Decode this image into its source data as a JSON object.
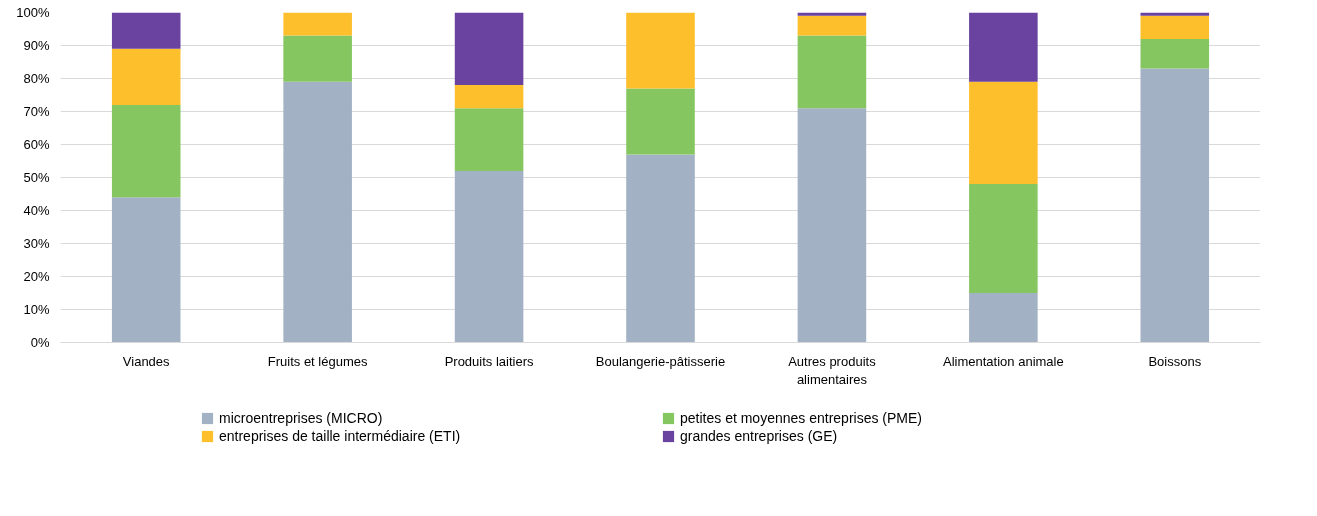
{
  "chart_data": {
    "type": "bar",
    "stacked": true,
    "categories": [
      "Viandes",
      "Fruits et légumes",
      "Produits laitiers",
      "Boulangerie-pâtisserie",
      "Autres produits alimentaires",
      "Alimentation animale",
      "Boissons"
    ],
    "series": [
      {
        "name": "microentreprises (MICRO)",
        "color": "#a2b1c3",
        "values": [
          44,
          79,
          52,
          57,
          71,
          15,
          83
        ]
      },
      {
        "name": "petites et moyennes entreprises (PME)",
        "color": "#86c661",
        "values": [
          28,
          14,
          19,
          20,
          22,
          33,
          9
        ]
      },
      {
        "name": "entreprises de taille intermédiaire (ETI)",
        "color": "#fdbf2c",
        "values": [
          17,
          7,
          7,
          23,
          6,
          31,
          7
        ]
      },
      {
        "name": "grandes entreprises (GE)",
        "color": "#6a42a0",
        "values": [
          11,
          0,
          22,
          0,
          1,
          21,
          1
        ]
      }
    ],
    "ylim": [
      0,
      100
    ],
    "yticks": [
      {
        "value": 0,
        "label": "0%"
      },
      {
        "value": 10,
        "label": "10%"
      },
      {
        "value": 20,
        "label": "20%"
      },
      {
        "value": 30,
        "label": "30%"
      },
      {
        "value": 40,
        "label": "40%"
      },
      {
        "value": 50,
        "label": "50%"
      },
      {
        "value": 60,
        "label": "60%"
      },
      {
        "value": 70,
        "label": "70%"
      },
      {
        "value": 80,
        "label": "80%"
      },
      {
        "value": 90,
        "label": "90%"
      },
      {
        "value": 100,
        "label": "100%"
      }
    ],
    "grid": "y",
    "legend": "bottom"
  }
}
